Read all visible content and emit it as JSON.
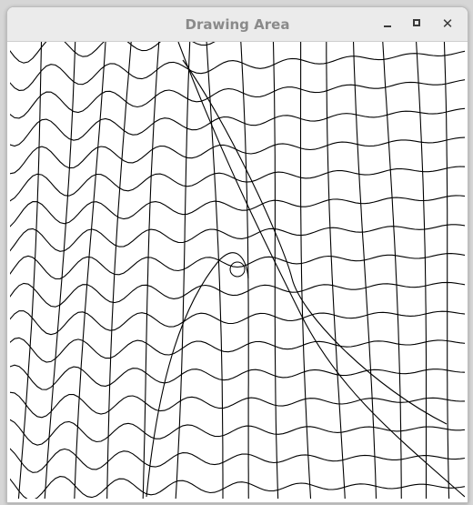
{
  "window": {
    "title": "Drawing Area",
    "controls": {
      "minimize": "minimize-icon",
      "maximize": "maximize-icon",
      "close": "close-icon",
      "close_glyph": "✕"
    }
  },
  "canvas": {
    "stroke_color": "#000000",
    "background": "#ffffff"
  }
}
